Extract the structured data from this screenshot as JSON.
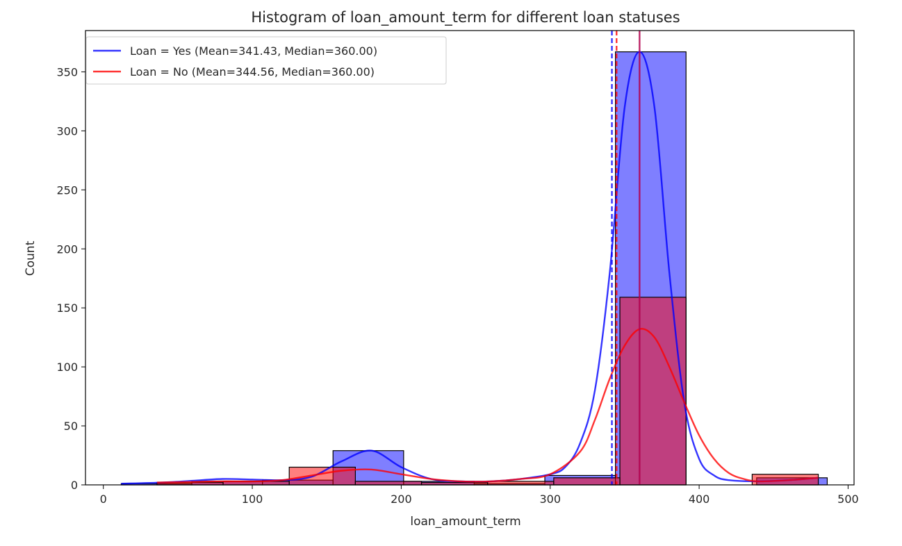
{
  "chart_data": {
    "type": "bar",
    "title": "Histogram of loan_amount_term for different loan statuses",
    "xlabel": "loan_amount_term",
    "ylabel": "Count",
    "xlim": [
      -12,
      504
    ],
    "ylim": [
      0,
      385
    ],
    "xticks": [
      0,
      100,
      200,
      300,
      400,
      500
    ],
    "yticks": [
      0,
      50,
      100,
      150,
      200,
      250,
      300,
      350
    ],
    "legend_position": "top-left",
    "series": [
      {
        "name": "Loan = Yes (Mean=341.43, Median=360.00)",
        "color": "#0000ff",
        "bins": [
          {
            "x0": 12,
            "x1": 59.4,
            "count": 1
          },
          {
            "x0": 59.4,
            "x1": 106.8,
            "count": 3
          },
          {
            "x0": 106.8,
            "x1": 154.2,
            "count": 4
          },
          {
            "x0": 154.2,
            "x1": 201.6,
            "count": 29
          },
          {
            "x0": 201.6,
            "x1": 249,
            "count": 3
          },
          {
            "x0": 249,
            "x1": 296.4,
            "count": 1
          },
          {
            "x0": 296.4,
            "x1": 343.8,
            "count": 8
          },
          {
            "x0": 343.8,
            "x1": 391.2,
            "count": 367
          },
          {
            "x0": 391.2,
            "x1": 438.6,
            "count": 0
          },
          {
            "x0": 438.6,
            "x1": 486,
            "count": 6
          }
        ],
        "kde": [
          [
            12,
            1
          ],
          [
            40,
            2
          ],
          [
            60,
            3.5
          ],
          [
            80,
            5
          ],
          [
            100,
            4.5
          ],
          [
            120,
            4
          ],
          [
            140,
            7
          ],
          [
            160,
            20
          ],
          [
            180,
            29
          ],
          [
            200,
            15
          ],
          [
            220,
            5
          ],
          [
            240,
            3
          ],
          [
            260,
            3
          ],
          [
            280,
            5
          ],
          [
            300,
            9
          ],
          [
            310,
            15
          ],
          [
            320,
            35
          ],
          [
            330,
            80
          ],
          [
            340,
            180
          ],
          [
            350,
            320
          ],
          [
            360,
            367
          ],
          [
            370,
            320
          ],
          [
            380,
            180
          ],
          [
            390,
            70
          ],
          [
            400,
            22
          ],
          [
            410,
            8
          ],
          [
            420,
            4
          ],
          [
            440,
            3
          ],
          [
            460,
            4
          ],
          [
            480,
            6
          ]
        ],
        "mean": 341.43,
        "median": 360.0
      },
      {
        "name": "Loan = No (Mean=344.56, Median=360.00)",
        "color": "#ff0000",
        "bins": [
          {
            "x0": 36,
            "x1": 80.4,
            "count": 2
          },
          {
            "x0": 80.4,
            "x1": 124.8,
            "count": 3
          },
          {
            "x0": 124.8,
            "x1": 169.2,
            "count": 15
          },
          {
            "x0": 169.2,
            "x1": 213.6,
            "count": 3
          },
          {
            "x0": 213.6,
            "x1": 258,
            "count": 2
          },
          {
            "x0": 258,
            "x1": 302.4,
            "count": 3
          },
          {
            "x0": 302.4,
            "x1": 346.8,
            "count": 6
          },
          {
            "x0": 346.8,
            "x1": 391.2,
            "count": 159
          },
          {
            "x0": 391.2,
            "x1": 435.6,
            "count": 0
          },
          {
            "x0": 435.6,
            "x1": 480,
            "count": 9
          }
        ],
        "kde": [
          [
            36,
            2
          ],
          [
            60,
            2.5
          ],
          [
            80,
            3
          ],
          [
            100,
            3
          ],
          [
            120,
            4
          ],
          [
            140,
            8
          ],
          [
            160,
            12
          ],
          [
            180,
            13
          ],
          [
            200,
            9
          ],
          [
            220,
            5
          ],
          [
            240,
            3
          ],
          [
            260,
            3
          ],
          [
            280,
            5
          ],
          [
            300,
            9
          ],
          [
            320,
            28
          ],
          [
            330,
            55
          ],
          [
            340,
            90
          ],
          [
            350,
            118
          ],
          [
            360,
            132
          ],
          [
            370,
            125
          ],
          [
            380,
            100
          ],
          [
            390,
            70
          ],
          [
            400,
            42
          ],
          [
            410,
            22
          ],
          [
            420,
            10
          ],
          [
            430,
            5
          ],
          [
            440,
            3
          ],
          [
            460,
            4
          ],
          [
            480,
            6
          ]
        ],
        "mean": 344.56,
        "median": 360.0
      }
    ]
  }
}
